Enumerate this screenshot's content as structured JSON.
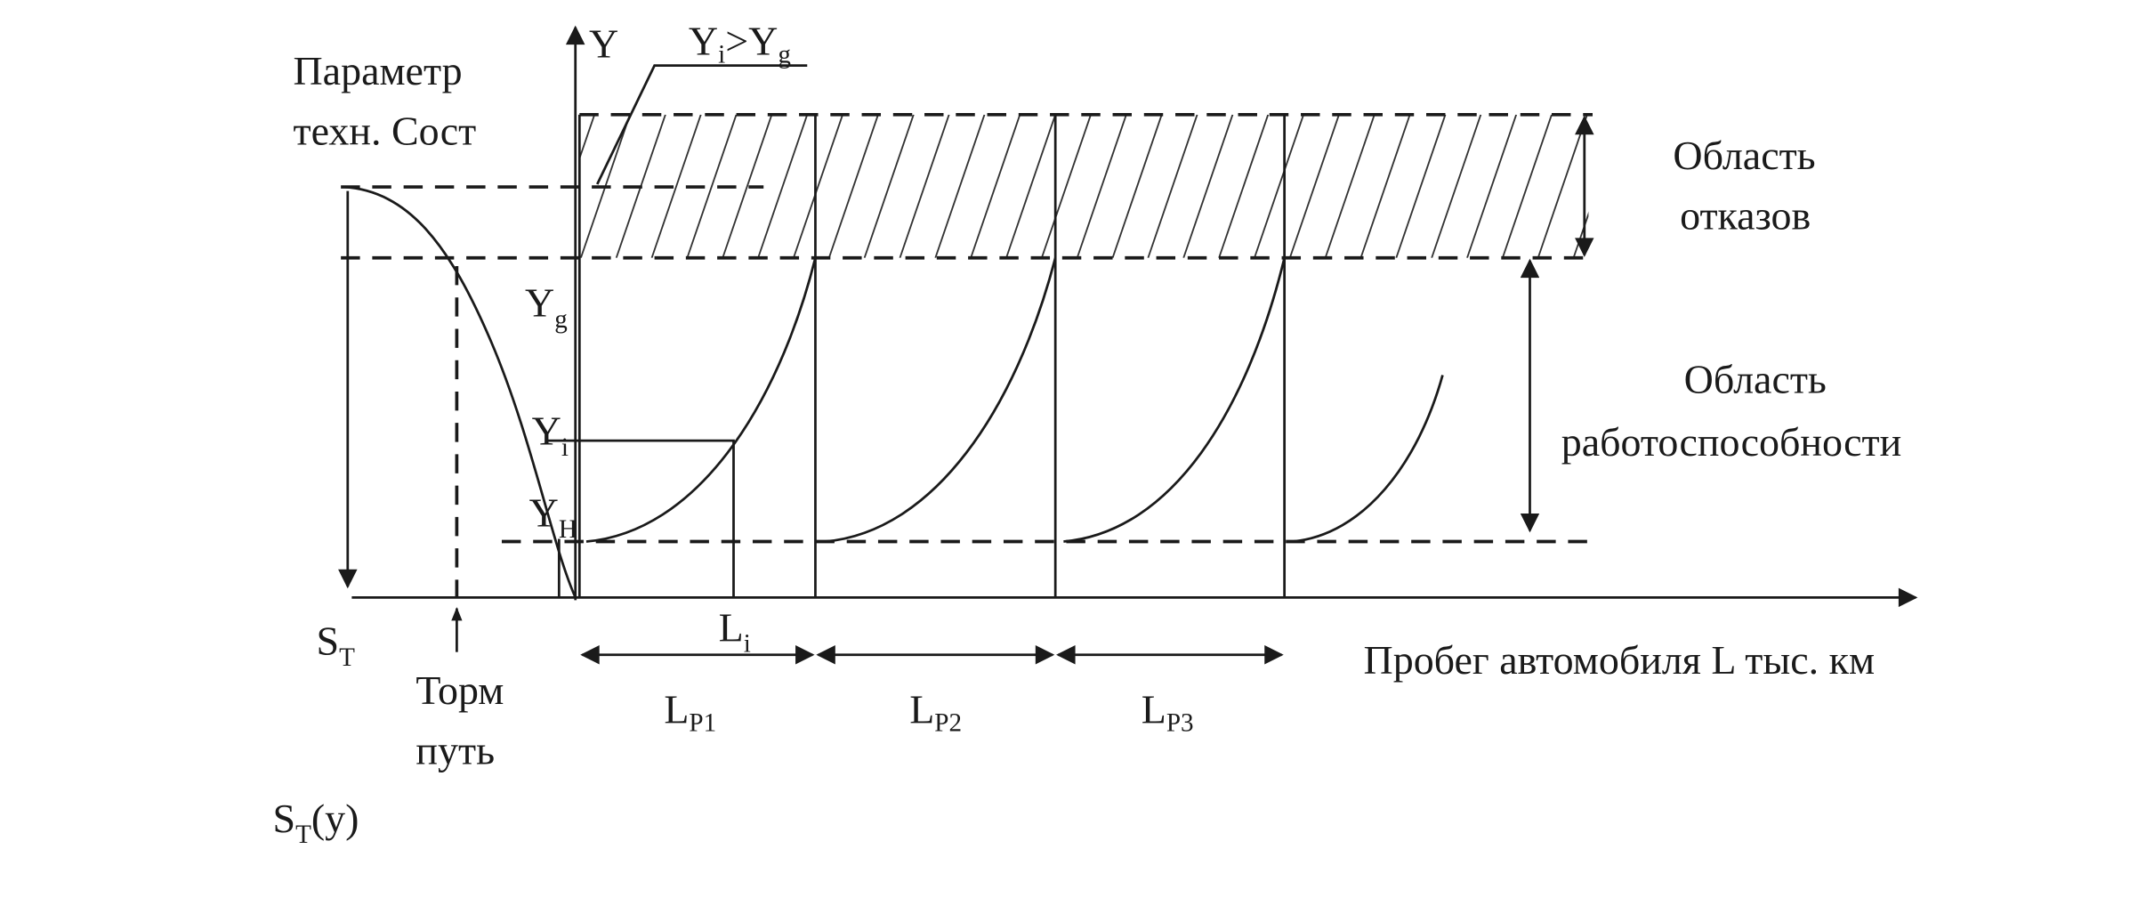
{
  "diagram": {
    "parameter_label": {
      "line1": "Параметр",
      "line2": "техн. Сост"
    },
    "y_axis": "Y",
    "condition": {
      "base": "Y",
      "sub": "i",
      "rest": ">Y",
      "sub2": "g"
    },
    "failure_region": {
      "line1": "Область",
      "line2": "отказов"
    },
    "working_region": {
      "line1": "Область",
      "line2": "работоспособности"
    },
    "y_g": {
      "base": "Y",
      "sub": "g"
    },
    "y_i": {
      "base": "Y",
      "sub": "i"
    },
    "y_h": {
      "base": "Y",
      "sub": "H"
    },
    "s_t": {
      "base": "S",
      "sub": "T"
    },
    "brake_path": {
      "line1": "Торм",
      "line2": "путь"
    },
    "s_t_y": {
      "base": "S",
      "sub": "T",
      "rest": "(y)"
    },
    "l_i": {
      "base": "L",
      "sub": "i"
    },
    "l_p1": {
      "base": "L",
      "sub": "P1"
    },
    "l_p2": {
      "base": "L",
      "sub": "P2"
    },
    "l_p3": {
      "base": "L",
      "sub": "P3"
    },
    "x_axis": "Пробег автомобиля L тыс. км"
  }
}
